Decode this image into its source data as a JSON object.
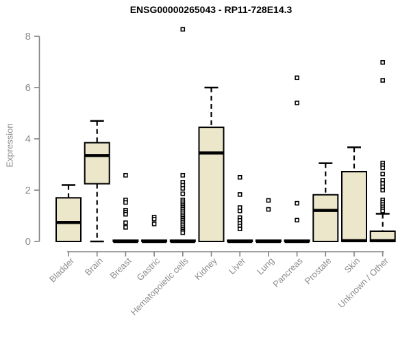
{
  "chart_data": {
    "type": "boxplot",
    "title": "ENSG00000265043 - RP11-728E14.3",
    "ylabel": "Expression",
    "xlabel": "",
    "ylim": [
      0,
      8
    ],
    "yticks": [
      0,
      2,
      4,
      6,
      8
    ],
    "grid": false,
    "legend": "none",
    "colors": {
      "box_fill": "#ECE7CB",
      "box_border": "#000000",
      "median": "#000000",
      "axis_line": "#808080",
      "axis_text": "#8C8C8C",
      "title_text": "#000000",
      "background": "#FFFFFF"
    },
    "categories": [
      "Bladder",
      "Brain",
      "Breast",
      "Gastric",
      "Hematopoietic cells",
      "Kidney",
      "Liver",
      "Lung",
      "Pancreas",
      "Prostate",
      "Skin",
      "Unknown / Other"
    ],
    "series": [
      {
        "name": "Bladder",
        "q1": 0,
        "median": 0.74,
        "q3": 1.7,
        "whisker_low": 0,
        "whisker_high": 2.2,
        "outliers": []
      },
      {
        "name": "Brain",
        "q1": 2.25,
        "median": 3.35,
        "q3": 3.85,
        "whisker_low": 0,
        "whisker_high": 4.7,
        "outliers": []
      },
      {
        "name": "Breast",
        "q1": 0,
        "median": 0,
        "q3": 0.05,
        "whisker_low": 0,
        "whisker_high": 0.05,
        "outliers": [
          2.58,
          1.62,
          1.52,
          1.22,
          1.14,
          1.06,
          0.73,
          0.55
        ]
      },
      {
        "name": "Gastric",
        "q1": 0,
        "median": 0,
        "q3": 0.05,
        "whisker_low": 0,
        "whisker_high": 0.05,
        "outliers": [
          0.95,
          0.87,
          0.68
        ]
      },
      {
        "name": "Hematopoietic cells",
        "q1": 0,
        "median": 0,
        "q3": 0.05,
        "whisker_low": 0,
        "whisker_high": 0.05,
        "outliers": [
          8.27,
          2.58,
          2.31,
          2.19,
          2.07,
          1.86,
          1.62,
          1.55,
          1.47,
          1.4,
          1.33,
          1.26,
          1.19,
          1.12,
          1.04,
          0.97,
          0.9,
          0.83,
          0.76,
          0.69,
          0.62,
          0.54,
          0.47,
          0.4,
          0.34
        ]
      },
      {
        "name": "Kidney",
        "q1": 0,
        "median": 3.45,
        "q3": 4.45,
        "whisker_low": 0,
        "whisker_high": 6.0,
        "outliers": []
      },
      {
        "name": "Liver",
        "q1": 0,
        "median": 0,
        "q3": 0.05,
        "whisker_low": 0,
        "whisker_high": 0.05,
        "outliers": [
          2.5,
          1.83,
          1.32,
          1.19,
          0.93,
          0.82,
          0.71,
          0.6,
          0.49
        ]
      },
      {
        "name": "Lung",
        "q1": 0,
        "median": 0,
        "q3": 0.05,
        "whisker_low": 0,
        "whisker_high": 0.05,
        "outliers": [
          1.6,
          1.25
        ]
      },
      {
        "name": "Pancreas",
        "q1": 0,
        "median": 0,
        "q3": 0.05,
        "whisker_low": 0,
        "whisker_high": 0.05,
        "outliers": [
          6.38,
          5.4,
          1.49,
          0.83
        ]
      },
      {
        "name": "Prostate",
        "q1": 0,
        "median": 1.21,
        "q3": 1.82,
        "whisker_low": 0,
        "whisker_high": 3.05,
        "outliers": []
      },
      {
        "name": "Skin",
        "q1": 0,
        "median": 0.03,
        "q3": 2.72,
        "whisker_low": 0,
        "whisker_high": 3.67,
        "outliers": []
      },
      {
        "name": "Unknown / Other",
        "q1": 0,
        "median": 0.03,
        "q3": 0.4,
        "whisker_low": 0,
        "whisker_high": 1.08,
        "outliers": [
          6.98,
          6.28,
          3.06,
          2.96,
          2.87,
          2.63,
          2.39,
          2.26,
          2.13,
          2.0,
          1.62,
          1.53,
          1.44,
          1.35,
          1.27,
          1.19
        ]
      }
    ]
  }
}
